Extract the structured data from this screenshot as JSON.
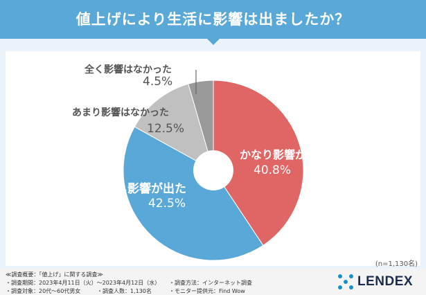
{
  "title": "値上げにより生活に影響は出ましたか？",
  "chart_data": {
    "type": "pie",
    "series": [
      {
        "name": "かなり影響が出た",
        "value": 40.8,
        "display": "40.8%",
        "color": "#e06666"
      },
      {
        "name": "少し影響が出た",
        "value": 42.5,
        "display": "42.5%",
        "color": "#5aa8d8"
      },
      {
        "name": "あまり影響はなかった",
        "value": 12.5,
        "display": "12.5%",
        "color": "#c0c0c0"
      },
      {
        "name": "全く影響はなかった",
        "value": 4.5,
        "display": "4.5%",
        "color": "#9a9a9a"
      }
    ]
  },
  "sample_note": "(n=1,130名)",
  "footer": {
    "line1": "≪調査概要：「値上げ」に関する調査≫",
    "line2a": "・調査期間：2023年4月11日（火）～2023年4月12日（水）",
    "line2b": "・調査方法：インターネット調査",
    "line3a": "・調査対象：20代～60代男女",
    "line3b": "・調査人数：1,130名",
    "line3c": "・モニター提供元：Find Wow"
  },
  "brand": "LENDEX"
}
